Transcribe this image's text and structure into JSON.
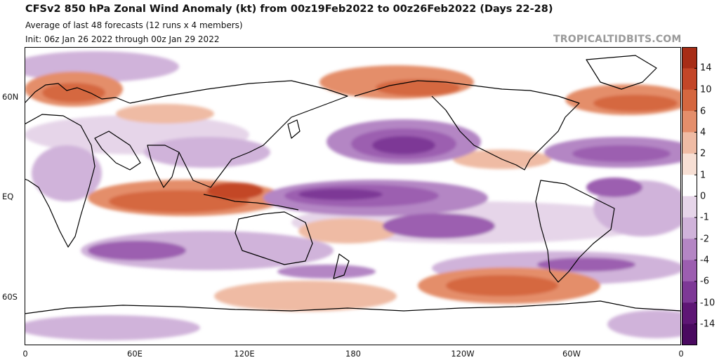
{
  "header": {
    "title": "CFSv2 850 hPa Zonal Wind Anomaly (kt) from 00z19Feb2022 to 00z26Feb2022 (Days 22-28)",
    "subtitle1": "Average of last 48 forecasts (12 runs x 4 members)",
    "subtitle2": "Init: 06z Jan 26 2022 through 00z Jan 29 2022",
    "watermark": "TROPICALTIDBITS.COM"
  },
  "axes": {
    "lat_labels": [
      "60N",
      "EQ",
      "60S"
    ],
    "lon_labels": [
      "0",
      "60E",
      "120E",
      "180",
      "120W",
      "60W",
      "0"
    ]
  },
  "colorbar": {
    "labels": [
      "14",
      "10",
      "6",
      "4",
      "2",
      "1",
      "0",
      "-1",
      "-2",
      "-4",
      "-6",
      "-10",
      "-14"
    ],
    "colors": [
      "#a72d16",
      "#c34628",
      "#d5673f",
      "#e48e6b",
      "#efbba4",
      "#f7dfd4",
      "#ffffff",
      "#e6d5e9",
      "#d0b3da",
      "#b486c4",
      "#9c5eb0",
      "#7d3896",
      "#5e1675",
      "#4a0a60"
    ]
  },
  "map_colors": {
    "background": "#ffffff",
    "coast": "#000000"
  }
}
